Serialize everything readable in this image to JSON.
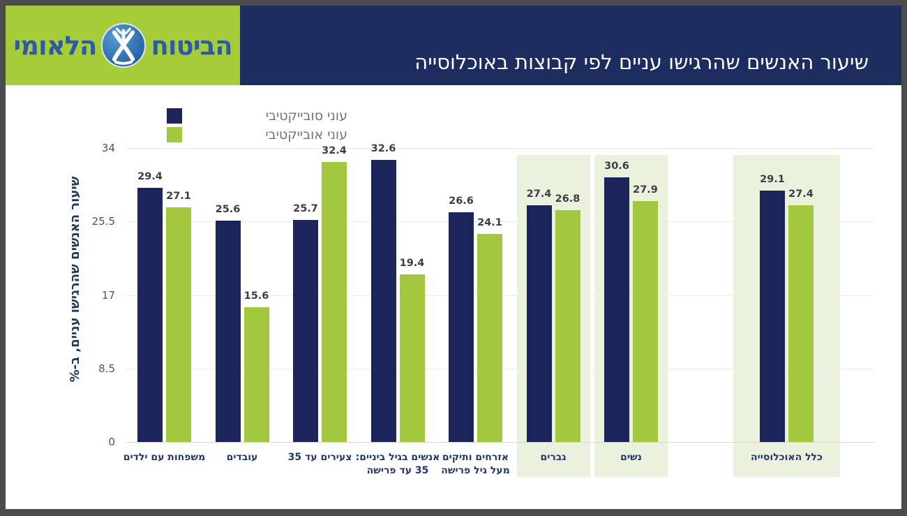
{
  "header": {
    "title": "שיעור האנשים שהרגישו עניים לפי קבוצות באוכלוסייה",
    "logo": {
      "word_right": "הביטוח",
      "word_left": "הלאומי"
    }
  },
  "legend": [
    {
      "label": "עוני סובייקטיבי",
      "color": "#1b2559"
    },
    {
      "label": "עוני אובייקטיבי",
      "color": "#a2c93e"
    }
  ],
  "chart_data": {
    "type": "bar",
    "title": "שיעור האנשים שהרגישו עניים לפי קבוצות באוכלוסייה",
    "ylabel": "שיעור האנשים שהרגישו עניים, ב-%",
    "ylim": [
      0,
      34
    ],
    "yticks": [
      0,
      8.5,
      17,
      25.5,
      34
    ],
    "grid": true,
    "legend_position": "top-left",
    "categories": [
      "משפחות עם ילדים",
      "עובדים",
      "צעירים עד 35",
      "אנשים בגיל ביניים: 35 עד פרישה",
      "אזרחים ותיקים מעל גיל פרישה",
      "גברים",
      "נשים",
      "כלל האוכלוסייה"
    ],
    "series": [
      {
        "name": "עוני סובייקטיבי",
        "color": "#1b2559",
        "values": [
          29.4,
          25.6,
          25.7,
          32.6,
          26.6,
          27.4,
          30.6,
          29.1
        ]
      },
      {
        "name": "עוני אובייקטיבי",
        "color": "#a2c93e",
        "values": [
          27.1,
          15.6,
          32.4,
          19.4,
          24.1,
          26.8,
          27.9,
          27.4
        ]
      }
    ],
    "groups": [
      {
        "label_lines": [
          "משפחות עם ילדים"
        ],
        "slot": 0,
        "highlighted": false,
        "wide": false
      },
      {
        "label_lines": [
          "עובדים"
        ],
        "slot": 1,
        "highlighted": false,
        "wide": false
      },
      {
        "label_lines": [
          "צעירים עד 35"
        ],
        "slot": 2,
        "highlighted": false,
        "wide": false
      },
      {
        "label_lines": [
          "אנשים בגיל ביניים:",
          "35 עד פרישה"
        ],
        "slot": 3,
        "highlighted": false,
        "wide": false
      },
      {
        "label_lines": [
          "אזרחים ותיקים",
          "מעל גיל פרישה"
        ],
        "slot": 4,
        "highlighted": false,
        "wide": false
      },
      {
        "label_lines": [
          "גברים"
        ],
        "slot": 5,
        "highlighted": true,
        "wide": false
      },
      {
        "label_lines": [
          "נשים"
        ],
        "slot": 6,
        "highlighted": true,
        "wide": false
      },
      {
        "label_lines": [
          "כלל האוכלוסייה"
        ],
        "slot": 8,
        "highlighted": true,
        "wide": true
      }
    ]
  },
  "colors": {
    "frame": "#4b4c4e",
    "page_bg": "#ffffff",
    "header_bg": "#1d2d5f",
    "logo_bg": "#a6cc39",
    "logo_text": "#2b5aa7",
    "bar_navy": "#1b2559",
    "bar_green": "#a2c93e",
    "highlight_bg": "#eaf1dd",
    "gridline": "#ececec",
    "zero_line": "#d8d8d8",
    "tick_label": "#44546a",
    "value_label": "#3d3d45",
    "x_label": "#24386b",
    "legend_text": "#73737a",
    "title_text": "#ffffff"
  }
}
